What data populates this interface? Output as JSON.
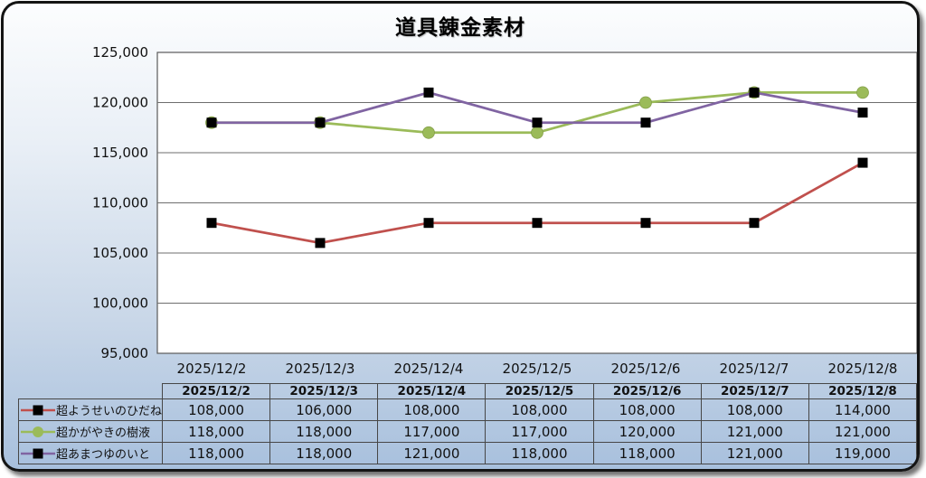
{
  "chart_data": {
    "type": "line",
    "title": "道具錬金素材",
    "categories": [
      "2025/12/2",
      "2025/12/3",
      "2025/12/4",
      "2025/12/5",
      "2025/12/6",
      "2025/12/7",
      "2025/12/8"
    ],
    "series": [
      {
        "name": "超ようせいのひだね",
        "color": "#C0504D",
        "marker": "square",
        "marker_color": "#000000",
        "values": [
          108000,
          106000,
          108000,
          108000,
          108000,
          108000,
          114000
        ]
      },
      {
        "name": "超かがやきの樹液",
        "color": "#9BBB59",
        "marker": "circle",
        "marker_color": "#9BBB59",
        "values": [
          118000,
          118000,
          117000,
          117000,
          120000,
          121000,
          121000
        ]
      },
      {
        "name": "超あまつゆのいと",
        "color": "#8064A2",
        "marker": "square",
        "marker_color": "#000000",
        "values": [
          118000,
          118000,
          121000,
          118000,
          118000,
          121000,
          119000
        ]
      }
    ],
    "ylim": [
      95000,
      125000
    ],
    "ytick_step": 5000,
    "grid": true,
    "legend_position": "table-left-column",
    "plot_bg_color": "#ffffff",
    "grid_color": "#6e6e6e"
  }
}
